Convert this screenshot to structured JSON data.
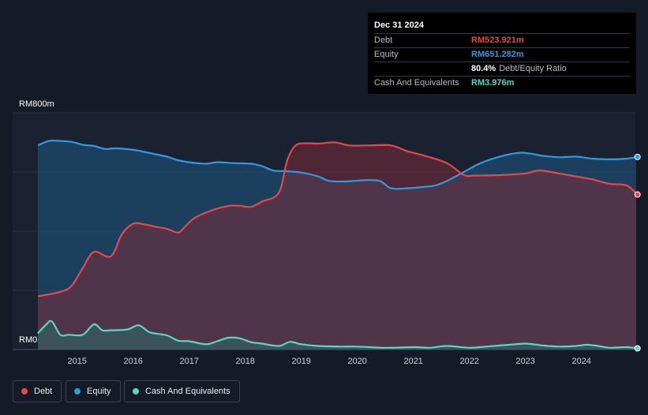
{
  "tooltip": {
    "date": "Dec 31 2024",
    "rows": [
      {
        "label": "Debt",
        "value": "RM523.921m",
        "color": "#e5484d"
      },
      {
        "label": "Equity",
        "value": "RM651.282m",
        "color": "#2f9ae0"
      },
      {
        "label": "",
        "value": "80.4%",
        "sub": "Debt/Equity Ratio",
        "color": "#ffffff"
      },
      {
        "label": "Cash And Equivalents",
        "value": "RM3.976m",
        "color": "#5cd6c0"
      }
    ]
  },
  "y_axis": {
    "top_label": "RM800m",
    "bottom_label": "RM0"
  },
  "legend": [
    {
      "label": "Debt",
      "color": "#e5484d"
    },
    {
      "label": "Equity",
      "color": "#2f9ae0"
    },
    {
      "label": "Cash And Equivalents",
      "color": "#5cd6c0"
    }
  ],
  "chart_data": {
    "type": "area",
    "ylim": [
      0,
      800
    ],
    "xlim": [
      2014.3,
      2025.0
    ],
    "x_ticks": [
      "2015",
      "2016",
      "2017",
      "2018",
      "2019",
      "2020",
      "2021",
      "2022",
      "2023",
      "2024"
    ],
    "series": [
      {
        "name": "Debt",
        "color": "#e5484d",
        "x": [
          2014.3,
          2014.7,
          2014.9,
          2015.1,
          2015.3,
          2015.6,
          2015.8,
          2016.0,
          2016.2,
          2016.4,
          2016.6,
          2016.8,
          2016.9,
          2017.1,
          2017.4,
          2017.7,
          2017.9,
          2018.1,
          2018.3,
          2018.6,
          2018.75,
          2018.9,
          2019.1,
          2019.3,
          2019.6,
          2019.85,
          2020.2,
          2020.6,
          2020.9,
          2021.2,
          2021.6,
          2021.9,
          2022.1,
          2022.6,
          2023.0,
          2023.25,
          2023.6,
          2023.9,
          2024.2,
          2024.5,
          2024.8,
          2025.0
        ],
        "values": [
          180,
          195,
          215,
          275,
          330,
          315,
          390,
          425,
          423,
          415,
          408,
          395,
          410,
          445,
          470,
          485,
          486,
          482,
          500,
          530,
          640,
          690,
          697,
          696,
          700,
          690,
          690,
          690,
          670,
          655,
          630,
          590,
          588,
          590,
          595,
          605,
          595,
          585,
          575,
          560,
          555,
          524
        ]
      },
      {
        "name": "Equity",
        "color": "#2f9ae0",
        "x": [
          2014.3,
          2014.5,
          2014.7,
          2014.9,
          2015.1,
          2015.3,
          2015.5,
          2015.7,
          2016.0,
          2016.2,
          2016.4,
          2016.6,
          2016.8,
          2017.0,
          2017.3,
          2017.5,
          2017.8,
          2018.1,
          2018.3,
          2018.5,
          2018.7,
          2019.0,
          2019.3,
          2019.5,
          2019.8,
          2020.1,
          2020.4,
          2020.6,
          2020.9,
          2021.2,
          2021.4,
          2021.6,
          2021.9,
          2022.2,
          2022.6,
          2022.9,
          2023.1,
          2023.3,
          2023.6,
          2023.9,
          2024.2,
          2024.5,
          2024.8,
          2025.0
        ],
        "values": [
          690,
          705,
          705,
          702,
          692,
          688,
          678,
          680,
          675,
          668,
          660,
          652,
          640,
          633,
          628,
          633,
          630,
          628,
          620,
          605,
          603,
          598,
          585,
          570,
          568,
          572,
          570,
          545,
          545,
          550,
          555,
          570,
          600,
          630,
          655,
          665,
          662,
          655,
          650,
          652,
          645,
          643,
          645,
          651
        ]
      },
      {
        "name": "Cash And Equivalents",
        "color": "#5cd6c0",
        "x": [
          2014.3,
          2014.45,
          2014.55,
          2014.7,
          2014.85,
          2015.1,
          2015.3,
          2015.45,
          2015.6,
          2015.9,
          2016.1,
          2016.3,
          2016.6,
          2016.8,
          2017.0,
          2017.3,
          2017.5,
          2017.7,
          2017.9,
          2018.1,
          2018.3,
          2018.6,
          2018.8,
          2019.0,
          2019.3,
          2019.7,
          2020.0,
          2020.5,
          2021.0,
          2021.3,
          2021.6,
          2022.0,
          2022.3,
          2022.7,
          2023.0,
          2023.3,
          2023.6,
          2023.9,
          2024.1,
          2024.3,
          2024.5,
          2024.8,
          2025.0
        ],
        "values": [
          55,
          85,
          95,
          50,
          50,
          50,
          85,
          65,
          65,
          68,
          82,
          58,
          48,
          30,
          28,
          18,
          28,
          40,
          38,
          25,
          20,
          12,
          26,
          18,
          12,
          10,
          10,
          6,
          8,
          6,
          12,
          6,
          10,
          16,
          20,
          14,
          10,
          12,
          16,
          12,
          6,
          8,
          4
        ]
      }
    ]
  }
}
